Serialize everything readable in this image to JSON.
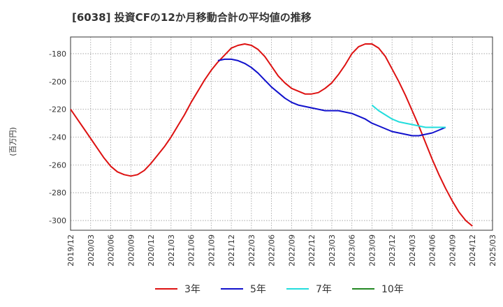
{
  "chart_data": {
    "type": "line",
    "title": "[6038]  投資CFの12か月移動合計の平均値の推移",
    "ylabel": "(百万円)",
    "xlabel": "",
    "ylim": [
      -307,
      -168
    ],
    "yticks": [
      -180,
      -200,
      -220,
      -240,
      -260,
      -280,
      -300
    ],
    "x_tick_labels": [
      "2019/12",
      "2020/03",
      "2020/06",
      "2020/09",
      "2020/12",
      "2021/03",
      "2021/06",
      "2021/09",
      "2021/12",
      "2022/03",
      "2022/06",
      "2022/09",
      "2022/12",
      "2023/03",
      "2023/06",
      "2023/09",
      "2023/12",
      "2024/03",
      "2024/06",
      "2024/09",
      "2024/12",
      "2025/03"
    ],
    "grid": true,
    "legend_position": "bottom",
    "series": [
      {
        "name": "3年",
        "color": "#dd1111",
        "start_index": 0,
        "values": [
          -220,
          -227,
          -234,
          -241,
          -248,
          -255,
          -261,
          -265,
          -267,
          -268,
          -267,
          -264,
          -259,
          -253,
          -247,
          -240,
          -232,
          -224,
          -215,
          -207,
          -199,
          -192,
          -186,
          -181,
          -176,
          -174,
          -173,
          -174,
          -177,
          -182,
          -189,
          -196,
          -201,
          -205,
          -207,
          -209,
          -209,
          -208,
          -205,
          -201,
          -195,
          -188,
          -180,
          -175,
          -173,
          -173,
          -176,
          -182,
          -191,
          -200,
          -210,
          -221,
          -232,
          -244,
          -256,
          -267,
          -277,
          -286,
          -294,
          -300,
          -304
        ]
      },
      {
        "name": "5年",
        "color": "#1111cc",
        "start_index": 22,
        "values": [
          -185,
          -184,
          -184,
          -185,
          -187,
          -190,
          -194,
          -199,
          -204,
          -208,
          -212,
          -215,
          -217,
          -218,
          -219,
          -220,
          -221,
          -221,
          -221,
          -222,
          -223,
          -225,
          -227,
          -230,
          -232,
          -234,
          -236,
          -237,
          -238,
          -239,
          -239,
          -238,
          -237,
          -235,
          -233
        ]
      },
      {
        "name": "7年",
        "color": "#22dddd",
        "start_index": 45,
        "values": [
          -217,
          -221,
          -224,
          -227,
          -229,
          -230,
          -231,
          -232,
          -233,
          -233,
          -233,
          -233
        ]
      },
      {
        "name": "10年",
        "color": "#228822",
        "start_index": 0,
        "values": []
      }
    ]
  }
}
